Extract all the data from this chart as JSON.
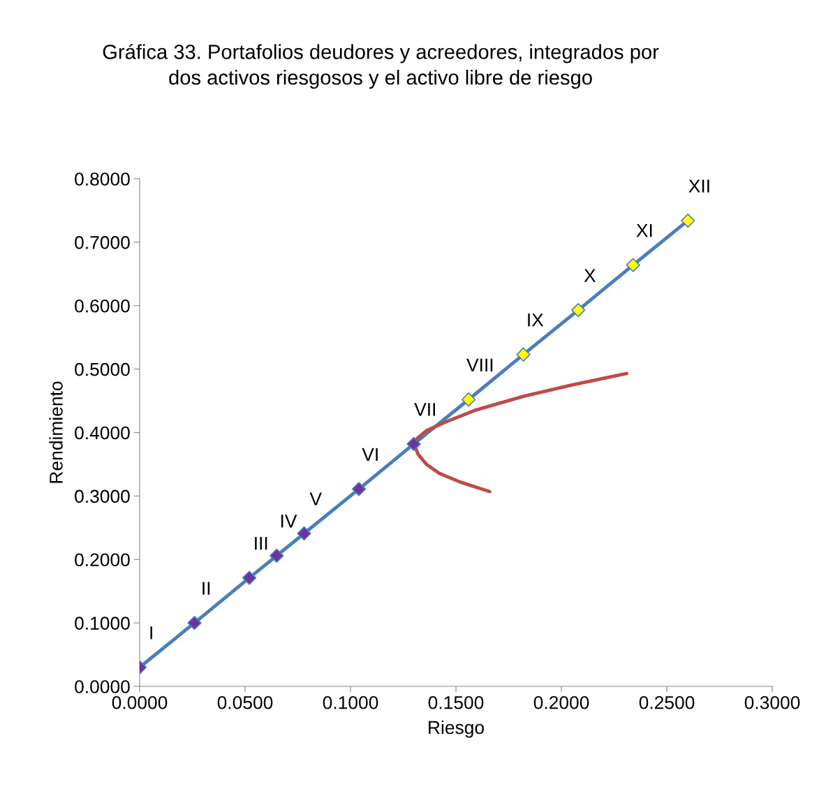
{
  "chart_data": {
    "type": "line",
    "title": "Gráfica 33. Portafolios deudores y acreedores, integrados por\ndos activos riesgosos y el activo libre de riesgo",
    "xlabel": "Riesgo",
    "ylabel": "Rendimiento",
    "xlim": [
      0,
      0.3
    ],
    "xticks": [
      {
        "value": 0,
        "label": "0.0000"
      },
      {
        "value": 0.05,
        "label": "0.0500"
      },
      {
        "value": 0.1,
        "label": "0.1000"
      },
      {
        "value": 0.15,
        "label": "0.1500"
      },
      {
        "value": 0.2,
        "label": "0.2000"
      },
      {
        "value": 0.25,
        "label": "0.2500"
      },
      {
        "value": 0.3,
        "label": "0.3000"
      }
    ],
    "ylim": [
      0,
      0.8
    ],
    "yticks": [
      {
        "value": 0,
        "label": "0.0000"
      },
      {
        "value": 0.1,
        "label": "0.1000"
      },
      {
        "value": 0.2,
        "label": "0.2000"
      },
      {
        "value": 0.3,
        "label": "0.3000"
      },
      {
        "value": 0.4,
        "label": "0.4000"
      },
      {
        "value": 0.5,
        "label": "0.5000"
      },
      {
        "value": 0.6,
        "label": "0.6000"
      },
      {
        "value": 0.7,
        "label": "0.7000"
      },
      {
        "value": 0.8,
        "label": "0.8000"
      }
    ],
    "grid": false,
    "legend": false,
    "series": [
      {
        "color": "#4a7ebb",
        "marker": "diamond",
        "x": [
          0,
          0.026,
          0.052,
          0.065,
          0.078,
          0.104,
          0.13,
          0.156,
          0.182,
          0.208,
          0.234,
          0.26
        ],
        "values": [
          0.03,
          0.1,
          0.171,
          0.206,
          0.241,
          0.311,
          0.382,
          0.452,
          0.523,
          0.593,
          0.664,
          0.734
        ],
        "colors": [
          "#7030a0",
          "#7030a0",
          "#7030a0",
          "#7030a0",
          "#7030a0",
          "#7030a0",
          "#7030a0",
          "#ffff00",
          "#ffff00",
          "#ffff00",
          "#ffff00",
          "#ffff00"
        ]
      },
      {
        "color": "#be4b48",
        "marker": "none",
        "x": [
          0.166,
          0.152,
          0.142,
          0.136,
          0.132,
          0.13,
          0.132,
          0.136,
          0.146,
          0.159,
          0.182,
          0.205,
          0.231
        ],
        "values": [
          0.307,
          0.322,
          0.336,
          0.35,
          0.366,
          0.383,
          0.392,
          0.403,
          0.418,
          0.435,
          0.457,
          0.475,
          0.493
        ]
      }
    ],
    "annotations": [
      {
        "text": "I",
        "x": 0,
        "y": 0.03
      },
      {
        "text": "II",
        "x": 0.026,
        "y": 0.1
      },
      {
        "text": "III",
        "x": 0.052,
        "y": 0.171
      },
      {
        "text": "IV",
        "x": 0.065,
        "y": 0.206
      },
      {
        "text": "V",
        "x": 0.078,
        "y": 0.241
      },
      {
        "text": "VI",
        "x": 0.104,
        "y": 0.311
      },
      {
        "text": "VII",
        "x": 0.13,
        "y": 0.382
      },
      {
        "text": "VIII",
        "x": 0.156,
        "y": 0.452
      },
      {
        "text": "IX",
        "x": 0.182,
        "y": 0.523
      },
      {
        "text": "X",
        "x": 0.208,
        "y": 0.593
      },
      {
        "text": "XI",
        "x": 0.234,
        "y": 0.664
      },
      {
        "text": "XII",
        "x": 0.26,
        "y": 0.734
      }
    ]
  }
}
